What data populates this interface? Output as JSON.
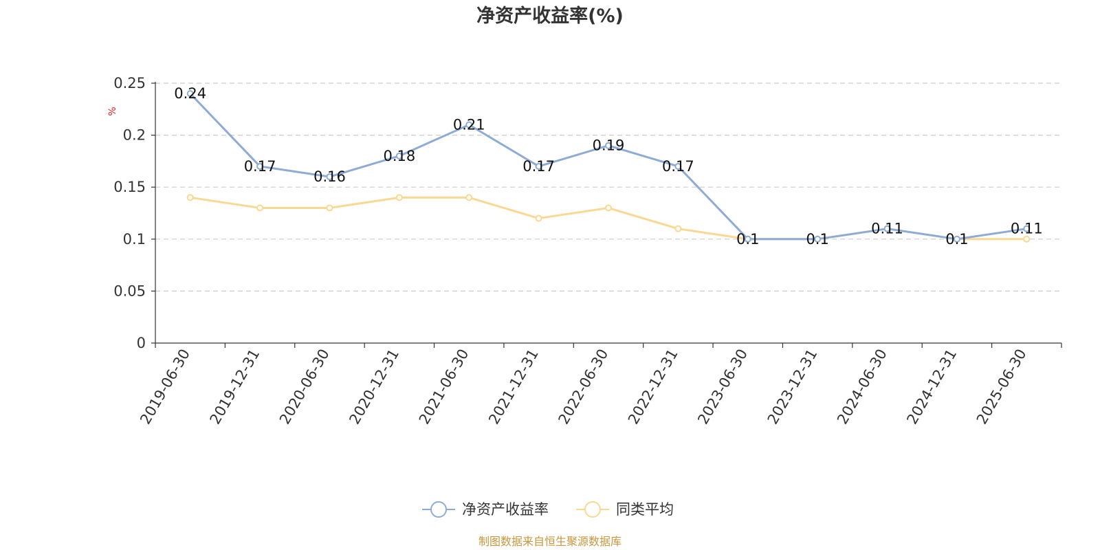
{
  "chart_data": {
    "type": "line",
    "title": "净资产收益率(%)",
    "unit": "%",
    "categories": [
      "2019-06-30",
      "2019-12-31",
      "2020-06-30",
      "2020-12-31",
      "2021-06-30",
      "2021-12-31",
      "2022-06-30",
      "2022-12-31",
      "2023-06-30",
      "2023-12-31",
      "2024-06-30",
      "2024-12-31",
      "2025-06-30"
    ],
    "ylim": [
      0,
      0.25
    ],
    "yticks": [
      0,
      0.05,
      0.1,
      0.15,
      0.2,
      0.25
    ],
    "grid": true,
    "legend_position": "bottom-center",
    "series": [
      {
        "name": "净资产收益率",
        "color": "#8eabd6",
        "values": [
          0.24,
          0.17,
          0.16,
          0.18,
          0.21,
          0.17,
          0.19,
          0.17,
          0.1,
          0.1,
          0.11,
          0.1,
          0.11
        ],
        "labels": [
          "0.24",
          "0.17",
          "0.16",
          "0.18",
          "0.21",
          "0.17",
          "0.19",
          "0.17",
          "0.1",
          "0.1",
          "0.11",
          "0.1",
          "0.11"
        ]
      },
      {
        "name": "同类平均",
        "color": "#fad892",
        "values": [
          0.14,
          0.13,
          0.13,
          0.14,
          0.14,
          0.12,
          0.13,
          0.11,
          0.1,
          0.1,
          0.11,
          0.1,
          0.1
        ]
      }
    ]
  },
  "source": "制图数据来自恒生聚源数据库"
}
